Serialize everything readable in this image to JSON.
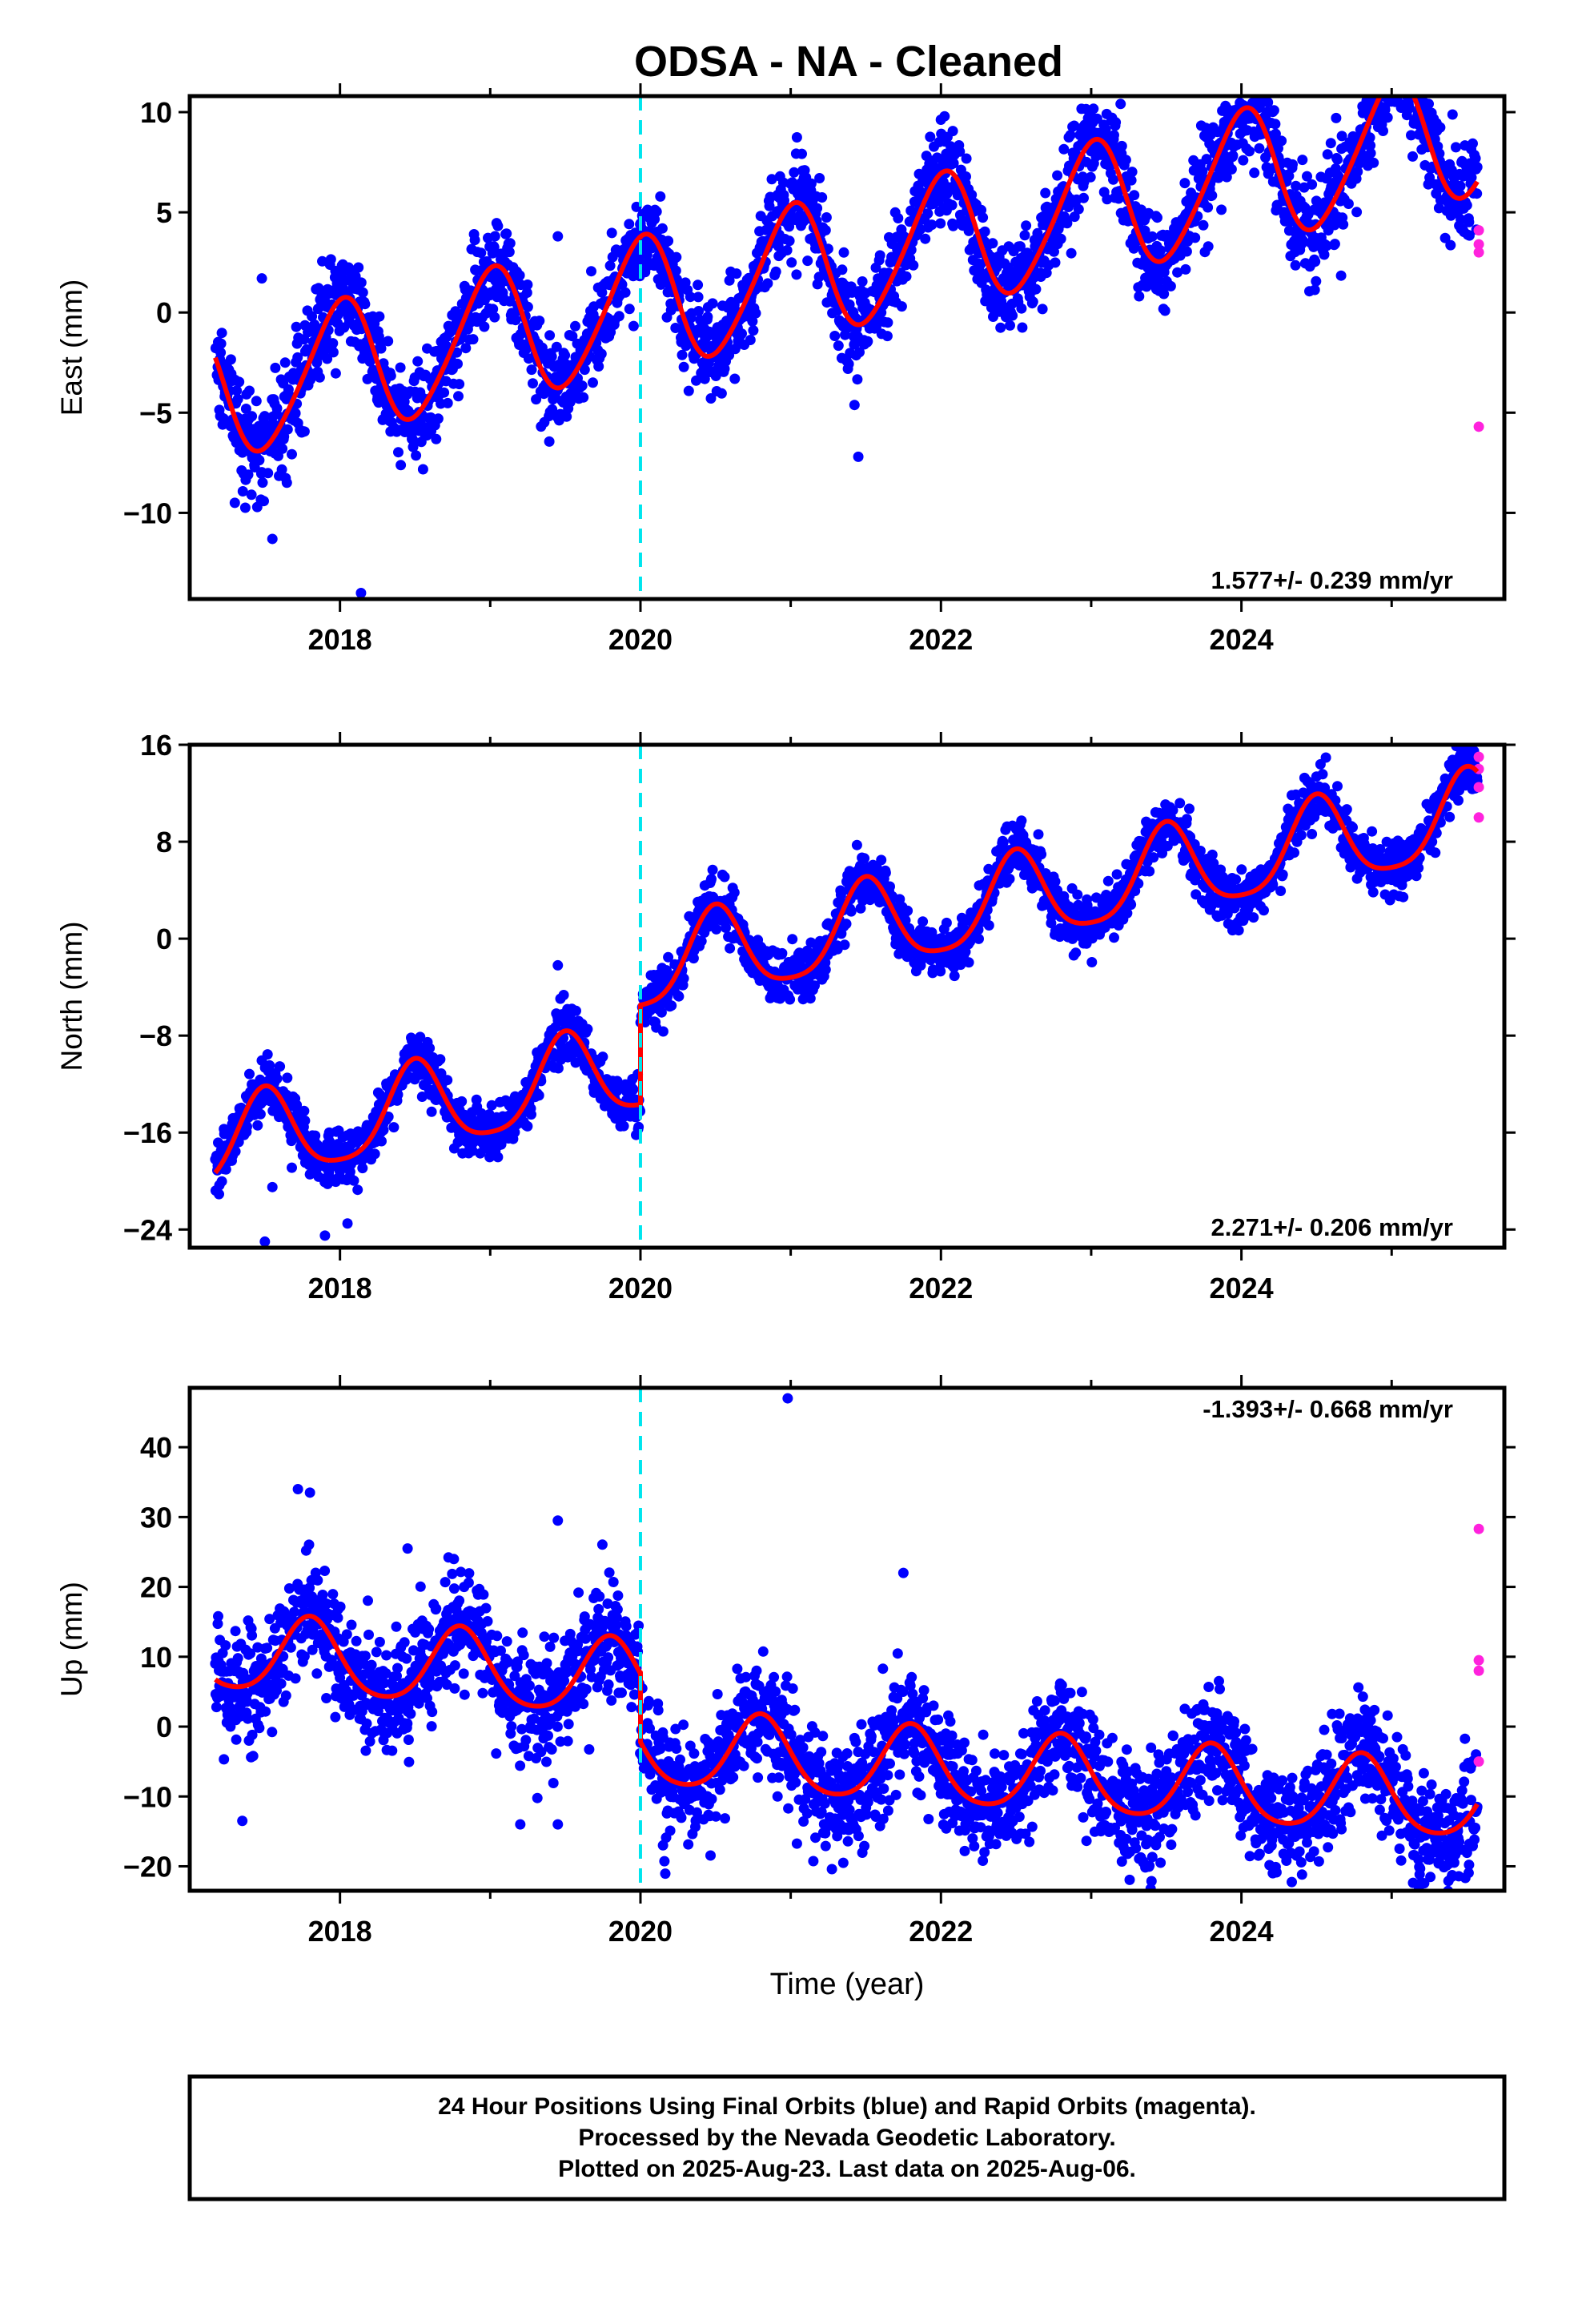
{
  "colors": {
    "final": "#0000ff",
    "rapid": "#ff22dd",
    "model": "#ff0000",
    "event": "#00e5ee",
    "frame": "#000000"
  },
  "chart_data": [
    {
      "type": "scatter",
      "panel": "east",
      "title": "ODSA  - NA - Cleaned",
      "xlabel": "",
      "ylabel": "East (mm)",
      "xlim": [
        2017.0,
        2025.75
      ],
      "ylim": [
        -14.3,
        10.8
      ],
      "xticks": [
        "2018",
        "2020",
        "2022",
        "2024"
      ],
      "yticks": [
        "10",
        "5",
        "0",
        "-5",
        "-10"
      ],
      "rate_label": "1.577+/- 0.239 mm/yr",
      "event_line_x": 2020.0,
      "model": {
        "intercept": -4.1,
        "trend": 1.577,
        "step_at_event": 0.0,
        "annual_amp": 3.3,
        "annual_peak": 0.0,
        "semiannual_amp": 0.4,
        "semiannual_peak": 0.1,
        "start": 2017.17,
        "end": 2025.57
      },
      "scatter_sd": 1.2,
      "outliers_final": [
        [
          2018.14,
          -14.0
        ],
        [
          2017.48,
          1.7
        ],
        [
          2017.55,
          -11.3
        ],
        [
          2020.95,
          5.7
        ],
        [
          2021.45,
          -7.2
        ],
        [
          2025.0,
          10.7
        ],
        [
          2019.45,
          3.8
        ],
        [
          2017.3,
          -9.5
        ]
      ],
      "rapid_points": [
        [
          2025.58,
          4.1
        ],
        [
          2025.58,
          3.4
        ],
        [
          2025.58,
          3.0
        ],
        [
          2025.58,
          -5.7
        ]
      ]
    },
    {
      "type": "scatter",
      "panel": "north",
      "title": "",
      "xlabel": "",
      "ylabel": "North (mm)",
      "xlim": [
        2017.0,
        2025.75
      ],
      "ylim": [
        -25.5,
        16.0
      ],
      "xticks": [
        "2018",
        "2020",
        "2022",
        "2024"
      ],
      "yticks": [
        "16",
        "8",
        "0",
        "-8",
        "-16",
        "-24"
      ],
      "rate_label": "2.271+/- 0.206 mm/yr",
      "event_line_x": 2020.0,
      "model": {
        "intercept": -17.2,
        "trend": 2.271,
        "step_at_event": 8.2,
        "annual_amp": 3.6,
        "annual_peak": 0.5,
        "semiannual_amp": 0.7,
        "semiannual_peak": 0.0,
        "start": 2017.17,
        "end": 2025.57
      },
      "scatter_sd": 1.1,
      "outliers_final": [
        [
          2017.5,
          -25.0
        ],
        [
          2017.9,
          -24.5
        ],
        [
          2018.05,
          -23.5
        ],
        [
          2019.45,
          -2.2
        ],
        [
          2017.55,
          -20.5
        ]
      ],
      "rapid_points": [
        [
          2025.58,
          15.0
        ],
        [
          2025.58,
          14.0
        ],
        [
          2025.58,
          12.5
        ],
        [
          2025.58,
          10.0
        ]
      ]
    },
    {
      "type": "scatter",
      "panel": "up",
      "title": "",
      "xlabel": "Time (year)",
      "ylabel": "Up (mm)",
      "xlim": [
        2017.0,
        2025.75
      ],
      "ylim": [
        -23.5,
        48.5
      ],
      "xticks": [
        "2018",
        "2020",
        "2022",
        "2024"
      ],
      "yticks": [
        "40",
        "30",
        "20",
        "10",
        "0",
        "-10",
        "-20"
      ],
      "rate_label": "-1.393+/- 0.668 mm/yr",
      "event_line_x": 2020.0,
      "model": {
        "intercept": 10.5,
        "trend": -1.393,
        "step_at_event": -9.8,
        "annual_amp": 5.4,
        "annual_peak": 0.8,
        "semiannual_amp": 0.8,
        "semiannual_peak": 0.3,
        "start": 2017.17,
        "end": 2025.57
      },
      "scatter_sd": 4.0,
      "outliers_final": [
        [
          2020.98,
          47.0
        ],
        [
          2017.72,
          34.0
        ],
        [
          2017.8,
          33.5
        ],
        [
          2019.45,
          29.5
        ],
        [
          2018.45,
          25.5
        ],
        [
          2021.75,
          22.0
        ],
        [
          2017.35,
          -13.5
        ],
        [
          2019.2,
          -14.0
        ],
        [
          2019.45,
          -14.0
        ],
        [
          2021.35,
          -19.5
        ],
        [
          2025.4,
          -21.5
        ],
        [
          2020.15,
          -17.0
        ]
      ],
      "rapid_points": [
        [
          2025.58,
          28.3
        ],
        [
          2025.58,
          9.5
        ],
        [
          2025.58,
          8.0
        ],
        [
          2025.58,
          -5.0
        ]
      ]
    }
  ],
  "caption": {
    "line1": "24 Hour Positions Using Final Orbits (blue) and Rapid Orbits (magenta).",
    "line2": "Processed by the Nevada Geodetic Laboratory.",
    "line3": "Plotted on 2025-Aug-23. Last data on 2025-Aug-06."
  }
}
